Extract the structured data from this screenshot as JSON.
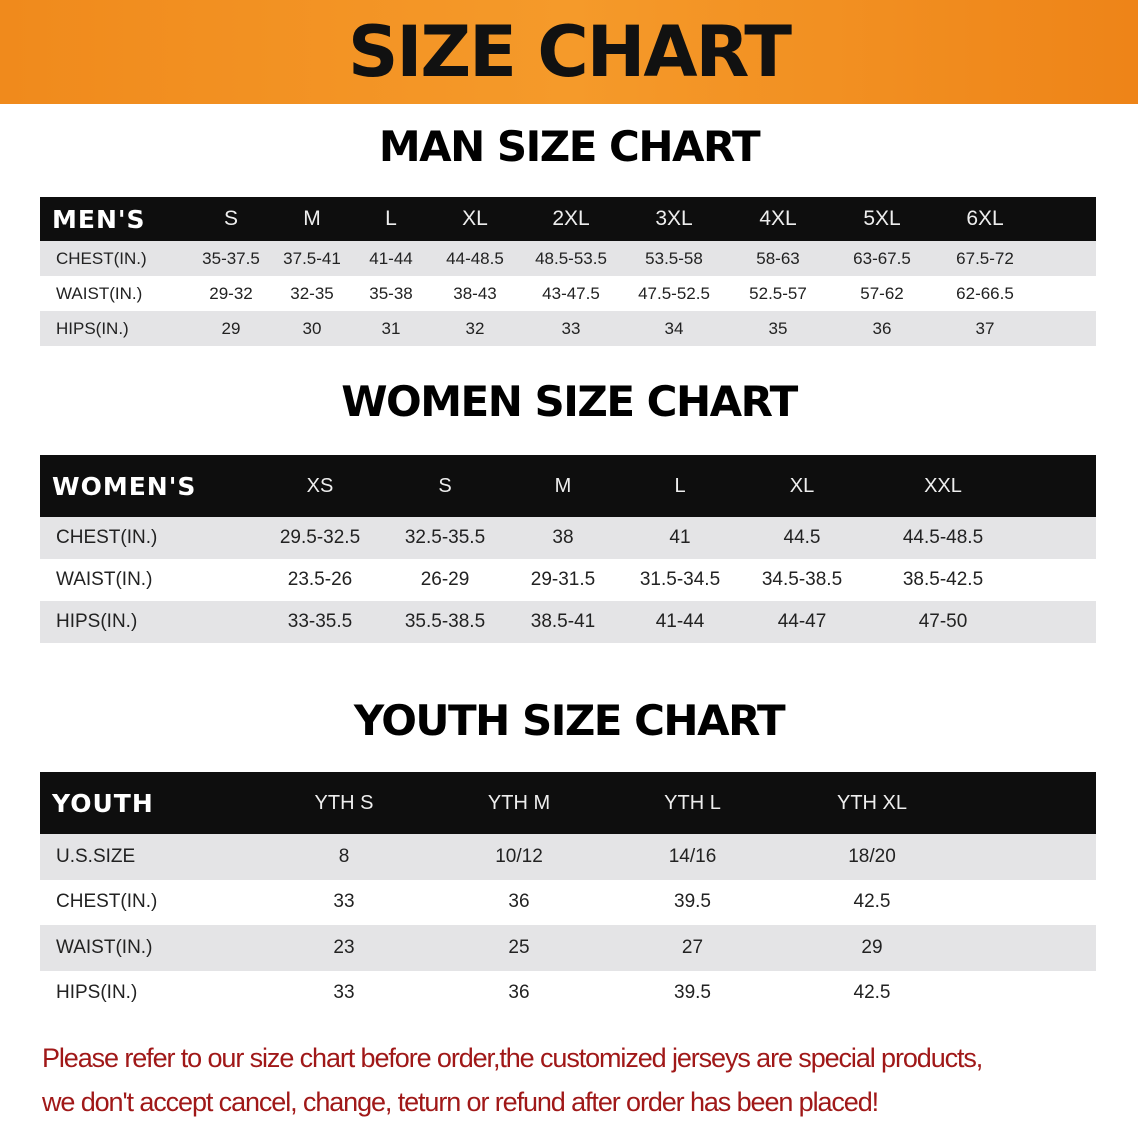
{
  "title": "SIZE CHART",
  "sections": [
    {
      "key": "men",
      "title": "MAN SIZE CHART",
      "header_label": "MEN'S",
      "sizes": [
        "S",
        "M",
        "L",
        "XL",
        "2XL",
        "3XL",
        "4XL",
        "5XL",
        "6XL"
      ],
      "rows": [
        {
          "label": "CHEST(IN.)",
          "values": [
            "35-37.5",
            "37.5-41",
            "41-44",
            "44-48.5",
            "48.5-53.5",
            "53.5-58",
            "58-63",
            "63-67.5",
            "67.5-72"
          ]
        },
        {
          "label": "WAIST(IN.)",
          "values": [
            "29-32",
            "32-35",
            "35-38",
            "38-43",
            "43-47.5",
            "47.5-52.5",
            "52.5-57",
            "57-62",
            "62-66.5"
          ]
        },
        {
          "label": "HIPS(IN.)",
          "values": [
            "29",
            "30",
            "31",
            "32",
            "33",
            "34",
            "35",
            "36",
            "37"
          ]
        }
      ]
    },
    {
      "key": "women",
      "title": "WOMEN SIZE CHART",
      "header_label": "WOMEN'S",
      "sizes": [
        "XS",
        "S",
        "M",
        "L",
        "XL",
        "XXL"
      ],
      "rows": [
        {
          "label": "CHEST(IN.)",
          "values": [
            "29.5-32.5",
            "32.5-35.5",
            "38",
            "41",
            "44.5",
            "44.5-48.5"
          ]
        },
        {
          "label": "WAIST(IN.)",
          "values": [
            "23.5-26",
            "26-29",
            "29-31.5",
            "31.5-34.5",
            "34.5-38.5",
            "38.5-42.5"
          ]
        },
        {
          "label": "HIPS(IN.)",
          "values": [
            "33-35.5",
            "35.5-38.5",
            "38.5-41",
            "41-44",
            "44-47",
            "47-50"
          ]
        }
      ]
    },
    {
      "key": "youth",
      "title": "YOUTH SIZE CHART",
      "header_label": "YOUTH",
      "sizes": [
        "YTH S",
        "YTH M",
        "YTH L",
        "YTH XL"
      ],
      "rows": [
        {
          "label": "U.S.SIZE",
          "values": [
            "8",
            "10/12",
            "14/16",
            "18/20"
          ]
        },
        {
          "label": "CHEST(IN.)",
          "values": [
            "33",
            "36",
            "39.5",
            "42.5"
          ]
        },
        {
          "label": "WAIST(IN.)",
          "values": [
            "23",
            "25",
            "27",
            "29"
          ]
        },
        {
          "label": "HIPS(IN.)",
          "values": [
            "33",
            "36",
            "39.5",
            "42.5"
          ]
        }
      ]
    }
  ],
  "notice": [
    "Please refer to our size chart before order,the customized jerseys are special products,",
    "we don't accept cancel, change, teturn or refund after order has been placed!"
  ],
  "colors": {
    "banner": "#f08a1c",
    "header_row": "#0e0e0e",
    "stripe": "#e4e4e6",
    "notice": "#a01818"
  }
}
